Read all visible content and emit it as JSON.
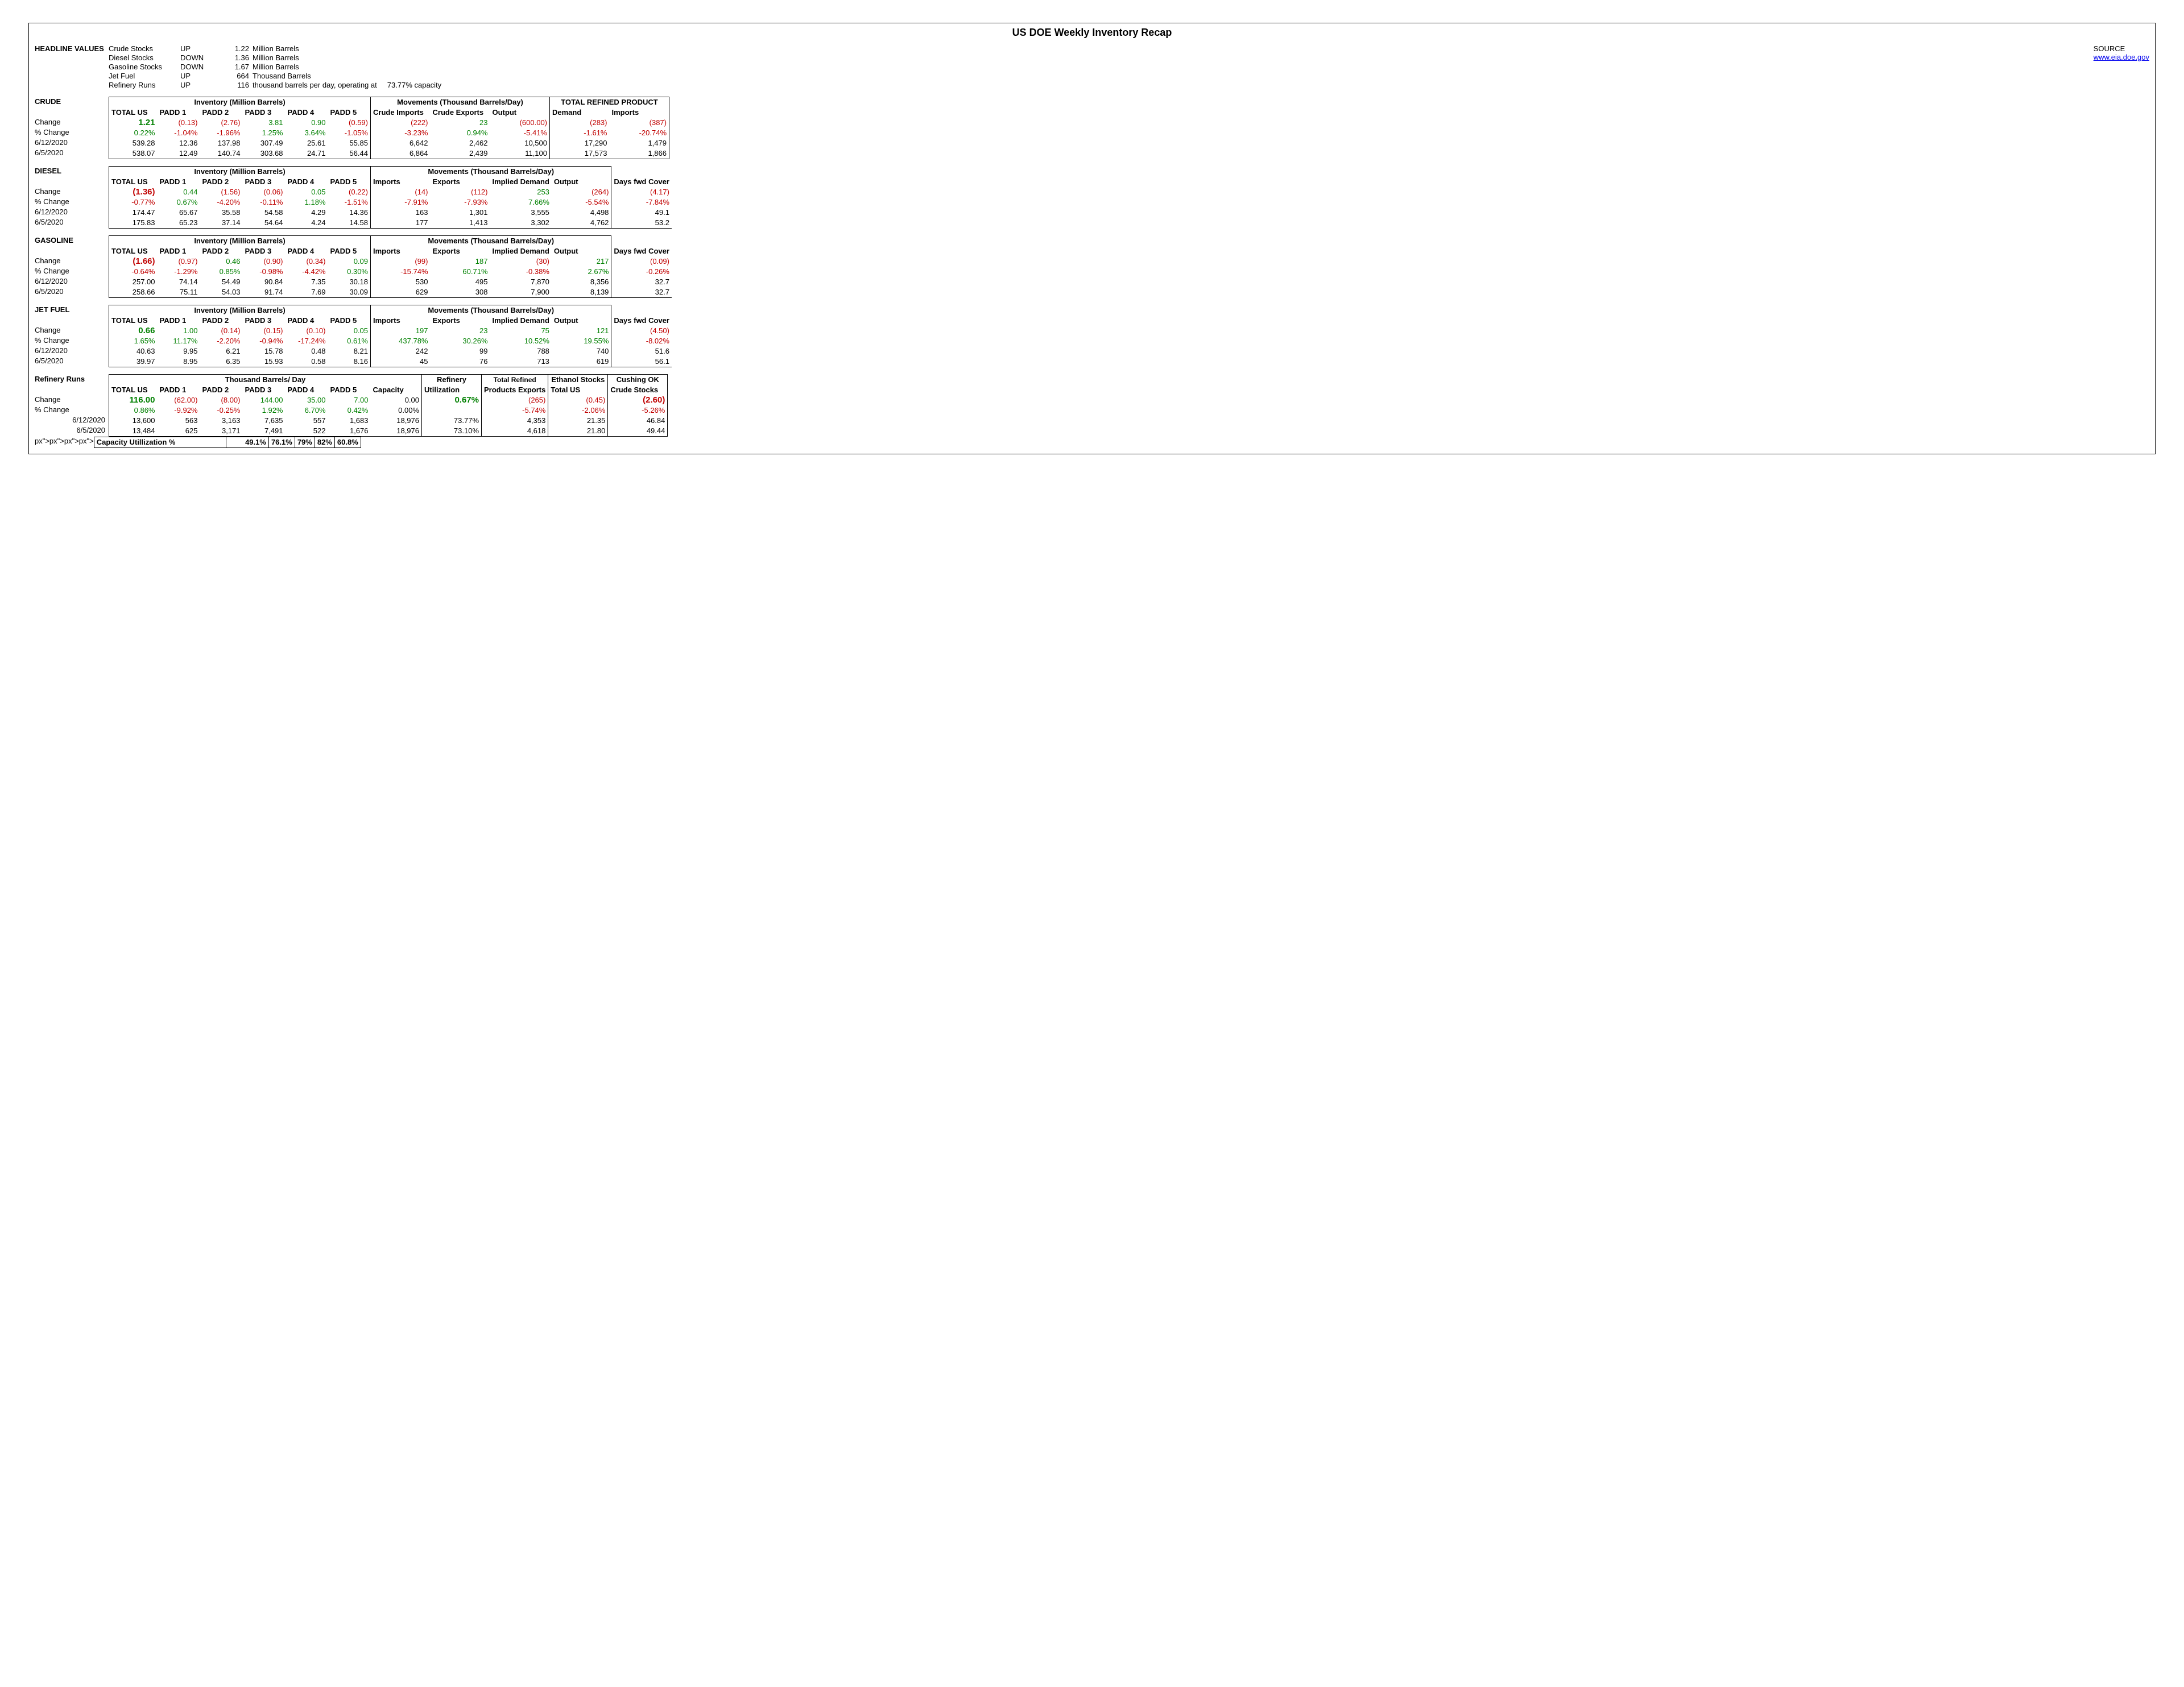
{
  "title": "US DOE Weekly Inventory Recap",
  "source_label": "SOURCE",
  "source_url": "www.eia.doe.gov",
  "headline_label": "HEADLINE VALUES",
  "headline": [
    {
      "name": "Crude Stocks",
      "dir": "UP",
      "amt": "1.22",
      "unit": "Million Barrels"
    },
    {
      "name": "Diesel Stocks",
      "dir": "DOWN",
      "amt": "1.36",
      "unit": "Million Barrels"
    },
    {
      "name": "Gasoline Stocks",
      "dir": "DOWN",
      "amt": "1.67",
      "unit": "Million Barrels"
    },
    {
      "name": "Jet Fuel",
      "dir": "UP",
      "amt": "664",
      "unit": "Thousand Barrels"
    },
    {
      "name": "Refinery Runs",
      "dir": "UP",
      "amt": "116",
      "unit": "thousand barrels per day, operating at",
      "extra": "73.77% capacity"
    }
  ],
  "row_labels": {
    "change": "Change",
    "pct": "% Change",
    "d1": "6/12/2020",
    "d2": "6/5/2020"
  },
  "crude": {
    "name": "CRUDE",
    "inv_hdr": "Inventory (Million Barrels)",
    "mov_hdr": "Movements (Thousand Barrels/Day)",
    "trp_hdr": "TOTAL REFINED PRODUCT",
    "cols": [
      "TOTAL US",
      "PADD 1",
      "PADD 2",
      "PADD 3",
      "PADD 4",
      "PADD 5",
      "Crude Imports",
      "Crude Exports",
      "Output",
      "Demand",
      "Imports"
    ],
    "change": [
      {
        "v": "1.21",
        "big": 1,
        "c": "pos"
      },
      {
        "v": "(0.13)",
        "c": "neg"
      },
      {
        "v": "(2.76)",
        "c": "neg"
      },
      {
        "v": "3.81",
        "c": "pos"
      },
      {
        "v": "0.90",
        "c": "pos"
      },
      {
        "v": "(0.59)",
        "c": "neg"
      },
      {
        "v": "(222)",
        "c": "neg"
      },
      {
        "v": "23",
        "c": "pos"
      },
      {
        "v": "(600.00)",
        "c": "neg"
      },
      {
        "v": "(283)",
        "c": "neg"
      },
      {
        "v": "(387)",
        "c": "neg"
      }
    ],
    "pct": [
      {
        "v": "0.22%",
        "c": "pos"
      },
      {
        "v": "-1.04%",
        "c": "neg"
      },
      {
        "v": "-1.96%",
        "c": "neg"
      },
      {
        "v": "1.25%",
        "c": "pos"
      },
      {
        "v": "3.64%",
        "c": "pos"
      },
      {
        "v": "-1.05%",
        "c": "neg"
      },
      {
        "v": "-3.23%",
        "c": "neg"
      },
      {
        "v": "0.94%",
        "c": "pos"
      },
      {
        "v": "-5.41%",
        "c": "neg"
      },
      {
        "v": "-1.61%",
        "c": "neg"
      },
      {
        "v": "-20.74%",
        "c": "neg"
      }
    ],
    "d1": [
      "539.28",
      "12.36",
      "137.98",
      "307.49",
      "25.61",
      "55.85",
      "6,642",
      "2,462",
      "10,500",
      "17,290",
      "1,479"
    ],
    "d2": [
      "538.07",
      "12.49",
      "140.74",
      "303.68",
      "24.71",
      "56.44",
      "6,864",
      "2,439",
      "11,100",
      "17,573",
      "1,866"
    ]
  },
  "diesel": {
    "name": "DIESEL",
    "inv_hdr": "Inventory (Million Barrels)",
    "mov_hdr": "Movements (Thousand Barrels/Day)",
    "cols": [
      "TOTAL US",
      "PADD 1",
      "PADD 2",
      "PADD 3",
      "PADD 4",
      "PADD 5",
      "Imports",
      "Exports",
      "Implied Demand",
      "Output",
      "Days fwd Cover"
    ],
    "change": [
      {
        "v": "(1.36)",
        "big": 1,
        "c": "neg"
      },
      {
        "v": "0.44",
        "c": "pos"
      },
      {
        "v": "(1.56)",
        "c": "neg"
      },
      {
        "v": "(0.06)",
        "c": "neg"
      },
      {
        "v": "0.05",
        "c": "pos"
      },
      {
        "v": "(0.22)",
        "c": "neg"
      },
      {
        "v": "(14)",
        "c": "neg"
      },
      {
        "v": "(112)",
        "c": "neg"
      },
      {
        "v": "253",
        "c": "pos"
      },
      {
        "v": "(264)",
        "c": "neg"
      },
      {
        "v": "(4.17)",
        "c": "neg"
      }
    ],
    "pct": [
      {
        "v": "-0.77%",
        "c": "neg"
      },
      {
        "v": "0.67%",
        "c": "pos"
      },
      {
        "v": "-4.20%",
        "c": "neg"
      },
      {
        "v": "-0.11%",
        "c": "neg"
      },
      {
        "v": "1.18%",
        "c": "pos"
      },
      {
        "v": "-1.51%",
        "c": "neg"
      },
      {
        "v": "-7.91%",
        "c": "neg"
      },
      {
        "v": "-7.93%",
        "c": "neg"
      },
      {
        "v": "7.66%",
        "c": "pos"
      },
      {
        "v": "-5.54%",
        "c": "neg"
      },
      {
        "v": "-7.84%",
        "c": "neg"
      }
    ],
    "d1": [
      "174.47",
      "65.67",
      "35.58",
      "54.58",
      "4.29",
      "14.36",
      "163",
      "1,301",
      "3,555",
      "4,498",
      "49.1"
    ],
    "d2": [
      "175.83",
      "65.23",
      "37.14",
      "54.64",
      "4.24",
      "14.58",
      "177",
      "1,413",
      "3,302",
      "4,762",
      "53.2"
    ]
  },
  "gasoline": {
    "name": "GASOLINE",
    "inv_hdr": "Inventory (Million Barrels)",
    "mov_hdr": "Movements (Thousand Barrels/Day)",
    "cols": [
      "TOTAL US",
      "PADD 1",
      "PADD 2",
      "PADD 3",
      "PADD 4",
      "PADD 5",
      "Imports",
      "Exports",
      "Implied Demand",
      "Output",
      "Days fwd Cover"
    ],
    "change": [
      {
        "v": "(1.66)",
        "big": 1,
        "c": "neg"
      },
      {
        "v": "(0.97)",
        "c": "neg"
      },
      {
        "v": "0.46",
        "c": "pos"
      },
      {
        "v": "(0.90)",
        "c": "neg"
      },
      {
        "v": "(0.34)",
        "c": "neg"
      },
      {
        "v": "0.09",
        "c": "pos"
      },
      {
        "v": "(99)",
        "c": "neg"
      },
      {
        "v": "187",
        "c": "pos"
      },
      {
        "v": "(30)",
        "c": "neg"
      },
      {
        "v": "217",
        "c": "pos"
      },
      {
        "v": "(0.09)",
        "c": "neg"
      }
    ],
    "pct": [
      {
        "v": "-0.64%",
        "c": "neg"
      },
      {
        "v": "-1.29%",
        "c": "neg"
      },
      {
        "v": "0.85%",
        "c": "pos"
      },
      {
        "v": "-0.98%",
        "c": "neg"
      },
      {
        "v": "-4.42%",
        "c": "neg"
      },
      {
        "v": "0.30%",
        "c": "pos"
      },
      {
        "v": "-15.74%",
        "c": "neg"
      },
      {
        "v": "60.71%",
        "c": "pos"
      },
      {
        "v": "-0.38%",
        "c": "neg"
      },
      {
        "v": "2.67%",
        "c": "pos"
      },
      {
        "v": "-0.26%",
        "c": "neg"
      }
    ],
    "d1": [
      "257.00",
      "74.14",
      "54.49",
      "90.84",
      "7.35",
      "30.18",
      "530",
      "495",
      "7,870",
      "8,356",
      "32.7"
    ],
    "d2": [
      "258.66",
      "75.11",
      "54.03",
      "91.74",
      "7.69",
      "30.09",
      "629",
      "308",
      "7,900",
      "8,139",
      "32.7"
    ]
  },
  "jet": {
    "name": "JET FUEL",
    "inv_hdr": "Inventory (Million Barrels)",
    "mov_hdr": "Movements (Thousand Barrels/Day)",
    "cols": [
      "TOTAL US",
      "PADD 1",
      "PADD 2",
      "PADD 3",
      "PADD 4",
      "PADD 5",
      "Imports",
      "Exports",
      "Implied Demand",
      "Output",
      "Days fwd Cover"
    ],
    "change": [
      {
        "v": "0.66",
        "big": 1,
        "c": "pos"
      },
      {
        "v": "1.00",
        "c": "pos"
      },
      {
        "v": "(0.14)",
        "c": "neg"
      },
      {
        "v": "(0.15)",
        "c": "neg"
      },
      {
        "v": "(0.10)",
        "c": "neg"
      },
      {
        "v": "0.05",
        "c": "pos"
      },
      {
        "v": "197",
        "c": "pos"
      },
      {
        "v": "23",
        "c": "pos"
      },
      {
        "v": "75",
        "c": "pos"
      },
      {
        "v": "121",
        "c": "pos"
      },
      {
        "v": "(4.50)",
        "c": "neg"
      }
    ],
    "pct": [
      {
        "v": "1.65%",
        "c": "pos"
      },
      {
        "v": "11.17%",
        "c": "pos"
      },
      {
        "v": "-2.20%",
        "c": "neg"
      },
      {
        "v": "-0.94%",
        "c": "neg"
      },
      {
        "v": "-17.24%",
        "c": "neg"
      },
      {
        "v": "0.61%",
        "c": "pos"
      },
      {
        "v": "437.78%",
        "c": "pos"
      },
      {
        "v": "30.26%",
        "c": "pos"
      },
      {
        "v": "10.52%",
        "c": "pos"
      },
      {
        "v": "19.55%",
        "c": "pos"
      },
      {
        "v": "-8.02%",
        "c": "neg"
      }
    ],
    "d1": [
      "40.63",
      "9.95",
      "6.21",
      "15.78",
      "0.48",
      "8.21",
      "242",
      "99",
      "788",
      "740",
      "51.6"
    ],
    "d2": [
      "39.97",
      "8.95",
      "6.35",
      "15.93",
      "0.58",
      "8.16",
      "45",
      "76",
      "713",
      "619",
      "56.1"
    ]
  },
  "refinery": {
    "name": "Refinery Runs",
    "main_hdr": "Thousand Barrels/ Day",
    "ref_hdr": "Refinery",
    "trp_hdr": "Total Refined",
    "eth_hdr": "Ethanol Stocks",
    "cush_hdr": "Cushing OK",
    "cols": [
      "TOTAL US",
      "PADD 1",
      "PADD 2",
      "PADD 3",
      "PADD 4",
      "PADD 5",
      "Capacity",
      "Utilization",
      "Products Exports",
      "Total US",
      "Crude Stocks"
    ],
    "change": [
      {
        "v": "116.00",
        "big": 1,
        "c": "pos"
      },
      {
        "v": "(62.00)",
        "c": "neg"
      },
      {
        "v": "(8.00)",
        "c": "neg"
      },
      {
        "v": "144.00",
        "c": "pos"
      },
      {
        "v": "35.00",
        "c": "pos"
      },
      {
        "v": "7.00",
        "c": "pos"
      },
      {
        "v": "0.00"
      },
      {
        "v": "0.67%",
        "big": 1,
        "c": "pos"
      },
      {
        "v": "(265)",
        "c": "neg"
      },
      {
        "v": "(0.45)",
        "c": "neg"
      },
      {
        "v": "(2.60)",
        "big": 1,
        "c": "neg"
      }
    ],
    "pct": [
      {
        "v": "0.86%",
        "c": "pos"
      },
      {
        "v": "-9.92%",
        "c": "neg"
      },
      {
        "v": "-0.25%",
        "c": "neg"
      },
      {
        "v": "1.92%",
        "c": "pos"
      },
      {
        "v": "6.70%",
        "c": "pos"
      },
      {
        "v": "0.42%",
        "c": "pos"
      },
      {
        "v": "0.00%"
      },
      {
        "v": ""
      },
      {
        "v": "-5.74%",
        "c": "neg"
      },
      {
        "v": "-2.06%",
        "c": "neg"
      },
      {
        "v": "-5.26%",
        "c": "neg"
      }
    ],
    "d1": [
      "13,600",
      "563",
      "3,163",
      "7,635",
      "557",
      "1,683",
      "18,976",
      "73.77%",
      "4,353",
      "21.35",
      "46.84"
    ],
    "d2": [
      "13,484",
      "625",
      "3,171",
      "7,491",
      "522",
      "1,676",
      "18,976",
      "73.10%",
      "4,618",
      "21.80",
      "49.44"
    ],
    "caputil_label": "Capacity Utillization %",
    "caputil": [
      "",
      "49.1%",
      "76.1%",
      "79%",
      "82%",
      "60.8%"
    ]
  }
}
